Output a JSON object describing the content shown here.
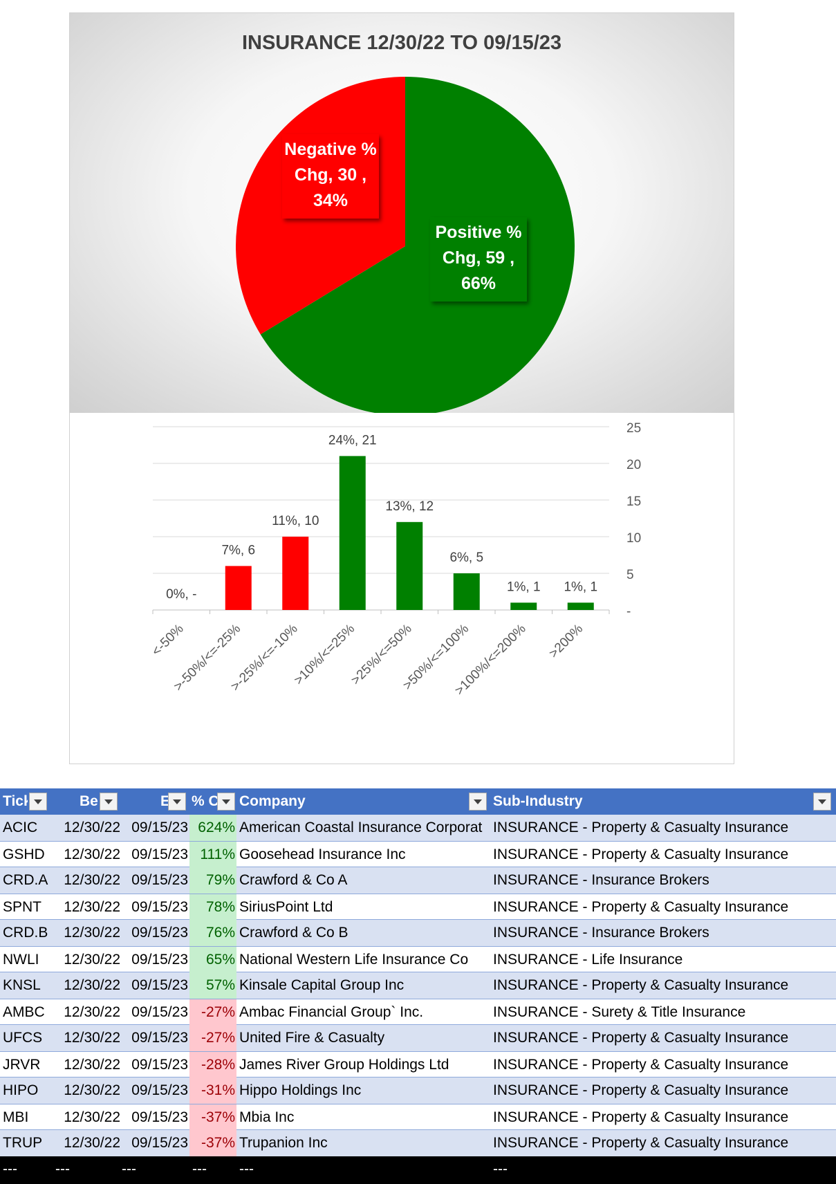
{
  "chart_data": [
    {
      "type": "pie",
      "title": "INSURANCE 12/30/22 TO 09/15/23",
      "slices": [
        {
          "label_lines": [
            "Positive %",
            "Chg,  59 ,",
            "66%"
          ],
          "name": "Positive % Chg",
          "value": 59,
          "percent": "66%",
          "color": "#008000"
        },
        {
          "label_lines": [
            "Negative %",
            "Chg,  30 ,",
            "34%"
          ],
          "name": "Negative % Chg",
          "value": 30,
          "percent": "34%",
          "color": "#ff0000"
        }
      ]
    },
    {
      "type": "bar",
      "categories": [
        "<-50%",
        ">-50%/<=-25%",
        ">-25%/<=-10%",
        ">10%/<=25%",
        ">25%/<=50%",
        ">50%/<=100%",
        ">100%/<=200%",
        ">200%"
      ],
      "values": [
        0,
        6,
        10,
        21,
        12,
        5,
        1,
        1
      ],
      "data_labels": [
        "0%,  -",
        "7%,  6",
        "11%,  10",
        "24%,  21",
        "13%,  12",
        "6%,  5",
        "1%,  1",
        "1%,  1"
      ],
      "colors": [
        "#ff0000",
        "#ff0000",
        "#ff0000",
        "#008000",
        "#008000",
        "#008000",
        "#008000",
        "#008000"
      ],
      "y_ticks": [
        "-",
        "5",
        "10",
        "15",
        "20",
        "25"
      ],
      "ylim": [
        0,
        25
      ],
      "y_axis_side": "right",
      "grid": true
    }
  ],
  "table": {
    "headers": [
      "Tick",
      "Be",
      "E",
      "% C",
      "Company",
      "Sub-Industry"
    ],
    "rows": [
      {
        "ticker": "ACIC",
        "begin": "12/30/22",
        "end": "09/15/23",
        "pct": "624%",
        "sign": "pos",
        "company": "American Coastal Insurance Corporat",
        "sub": "INSURANCE - Property & Casualty Insurance"
      },
      {
        "ticker": "GSHD",
        "begin": "12/30/22",
        "end": "09/15/23",
        "pct": "111%",
        "sign": "pos",
        "company": "Goosehead Insurance Inc",
        "sub": "INSURANCE - Property & Casualty Insurance"
      },
      {
        "ticker": "CRD.A",
        "begin": "12/30/22",
        "end": "09/15/23",
        "pct": "79%",
        "sign": "pos",
        "company": "Crawford & Co A",
        "sub": "INSURANCE - Insurance Brokers"
      },
      {
        "ticker": "SPNT",
        "begin": "12/30/22",
        "end": "09/15/23",
        "pct": "78%",
        "sign": "pos",
        "company": "SiriusPoint Ltd",
        "sub": "INSURANCE - Property & Casualty Insurance"
      },
      {
        "ticker": "CRD.B",
        "begin": "12/30/22",
        "end": "09/15/23",
        "pct": "76%",
        "sign": "pos",
        "company": "Crawford & Co B",
        "sub": "INSURANCE - Insurance Brokers"
      },
      {
        "ticker": "NWLI",
        "begin": "12/30/22",
        "end": "09/15/23",
        "pct": "65%",
        "sign": "pos",
        "company": "National Western Life Insurance Co",
        "sub": "INSURANCE - Life Insurance"
      },
      {
        "ticker": "KNSL",
        "begin": "12/30/22",
        "end": "09/15/23",
        "pct": "57%",
        "sign": "pos",
        "company": "Kinsale Capital Group Inc",
        "sub": "INSURANCE - Property & Casualty Insurance"
      },
      {
        "ticker": "AMBC",
        "begin": "12/30/22",
        "end": "09/15/23",
        "pct": "-27%",
        "sign": "neg",
        "company": "Ambac Financial Group` Inc.",
        "sub": "INSURANCE - Surety & Title Insurance"
      },
      {
        "ticker": "UFCS",
        "begin": "12/30/22",
        "end": "09/15/23",
        "pct": "-27%",
        "sign": "neg",
        "company": "United Fire & Casualty",
        "sub": "INSURANCE - Property & Casualty Insurance"
      },
      {
        "ticker": "JRVR",
        "begin": "12/30/22",
        "end": "09/15/23",
        "pct": "-28%",
        "sign": "neg",
        "company": "James River Group Holdings Ltd",
        "sub": "INSURANCE - Property & Casualty Insurance"
      },
      {
        "ticker": "HIPO",
        "begin": "12/30/22",
        "end": "09/15/23",
        "pct": "-31%",
        "sign": "neg",
        "company": "Hippo Holdings Inc",
        "sub": "INSURANCE - Property & Casualty Insurance"
      },
      {
        "ticker": "MBI",
        "begin": "12/30/22",
        "end": "09/15/23",
        "pct": "-37%",
        "sign": "neg",
        "company": "Mbia Inc",
        "sub": "INSURANCE - Property & Casualty Insurance"
      },
      {
        "ticker": "TRUP",
        "begin": "12/30/22",
        "end": "09/15/23",
        "pct": "-37%",
        "sign": "neg",
        "company": "Trupanion Inc",
        "sub": "INSURANCE - Property & Casualty Insurance"
      }
    ],
    "footer": [
      "---",
      "---",
      "---",
      "---",
      "---",
      "---"
    ]
  }
}
